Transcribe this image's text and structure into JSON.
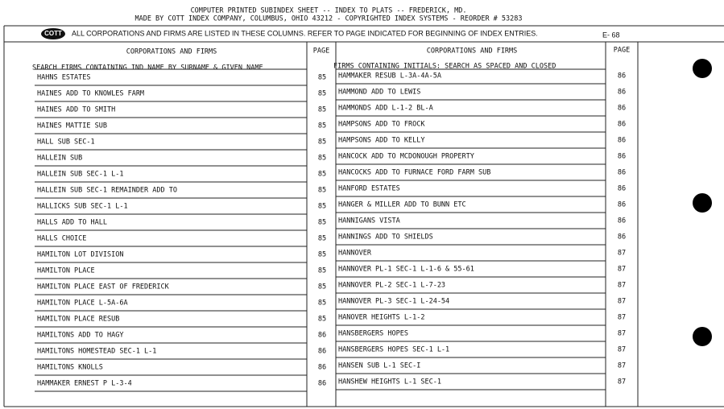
{
  "header": {
    "line1": "COMPUTER PRINTED SUBINDEX SHEET -- INDEX TO PLATS -- FREDERICK, MD.",
    "line2": "MADE BY COTT INDEX COMPANY, COLUMBUS, OHIO 43212 - COPYRIGHTED INDEX SYSTEMS - REORDER # 53283"
  },
  "notice": {
    "logo": "COTT",
    "text": "ALL CORPORATIONS AND FIRMS ARE LISTED IN THESE COLUMNS. REFER TO PAGE INDICATED FOR BEGINNING OF INDEX ENTRIES.",
    "sheet": "E- 68"
  },
  "columns": {
    "left_name": "CORPORATIONS AND FIRMS",
    "left_page": "PAGE",
    "right_name": "CORPORATIONS AND FIRMS",
    "right_page": "PAGE"
  },
  "left_subheader": "SEARCH FIRMS CONTAINING IND NAME BY SURNAME & GIVEN NAME",
  "right_subheader": "FIRMS CONTAINING INITIALS: SEARCH AS SPACED AND CLOSED",
  "left_rows": [
    [
      "HAHNS ESTATES",
      85
    ],
    [
      "HAINES ADD TO KNOWLES FARM",
      85
    ],
    [
      "HAINES ADD TO SMITH",
      85
    ],
    [
      "HAINES MATTIE SUB",
      85
    ],
    [
      "HALL SUB SEC-1",
      85
    ],
    [
      "HALLEIN SUB",
      85
    ],
    [
      "HALLEIN SUB SEC-1 L-1",
      85
    ],
    [
      "HALLEIN SUB SEC-1 REMAINDER ADD TO",
      85
    ],
    [
      "HALLICKS SUB SEC-1 L-1",
      85
    ],
    [
      "HALLS ADD TO HALL",
      85
    ],
    [
      "HALLS CHOICE",
      85
    ],
    [
      "HAMILTON LOT DIVISION",
      85
    ],
    [
      "HAMILTON PLACE",
      85
    ],
    [
      "HAMILTON PLACE EAST OF FREDERICK",
      85
    ],
    [
      "HAMILTON PLACE L-5A-6A",
      85
    ],
    [
      "HAMILTON PLACE RESUB",
      85
    ],
    [
      "HAMILTONS ADD TO HAGY",
      86
    ],
    [
      "HAMILTONS HOMESTEAD SEC-1 L-1",
      86
    ],
    [
      "HAMILTONS KNOLLS",
      86
    ],
    [
      "HAMMAKER ERNEST P L-3-4",
      86
    ]
  ],
  "right_rows": [
    [
      "HAMMAKER RESUB L-3A-4A-5A",
      86
    ],
    [
      "HAMMOND ADD TO LEWIS",
      86
    ],
    [
      "HAMMONDS ADD L-1-2 BL-A",
      86
    ],
    [
      "HAMPSONS ADD TO FROCK",
      86
    ],
    [
      "HAMPSONS ADD TO KELLY",
      86
    ],
    [
      "HANCOCK ADD TO MCDONOUGH PROPERTY",
      86
    ],
    [
      "HANCOCKS ADD TO FURNACE FORD FARM SUB",
      86
    ],
    [
      "HANFORD ESTATES",
      86
    ],
    [
      "HANGER & MILLER ADD TO BUNN ETC",
      86
    ],
    [
      "HANNIGANS VISTA",
      86
    ],
    [
      "HANNINGS ADD TO SHIELDS",
      86
    ],
    [
      "HANNOVER",
      87
    ],
    [
      "HANNOVER PL-1 SEC-1 L-1-6 & 55-61",
      87
    ],
    [
      "HANNOVER PL-2 SEC-1 L-7-23",
      87
    ],
    [
      "HANNOVER PL-3 SEC-1 L-24-54",
      87
    ],
    [
      "HANOVER HEIGHTS L-1-2",
      87
    ],
    [
      "HANSBERGERS HOPES",
      87
    ],
    [
      "HANSBERGERS HOPES SEC-1 L-1",
      87
    ],
    [
      "HANSEN SUB L-1 SEC-I",
      87
    ],
    [
      "HANSHEW HEIGHTS L-1 SEC-1",
      87
    ]
  ]
}
